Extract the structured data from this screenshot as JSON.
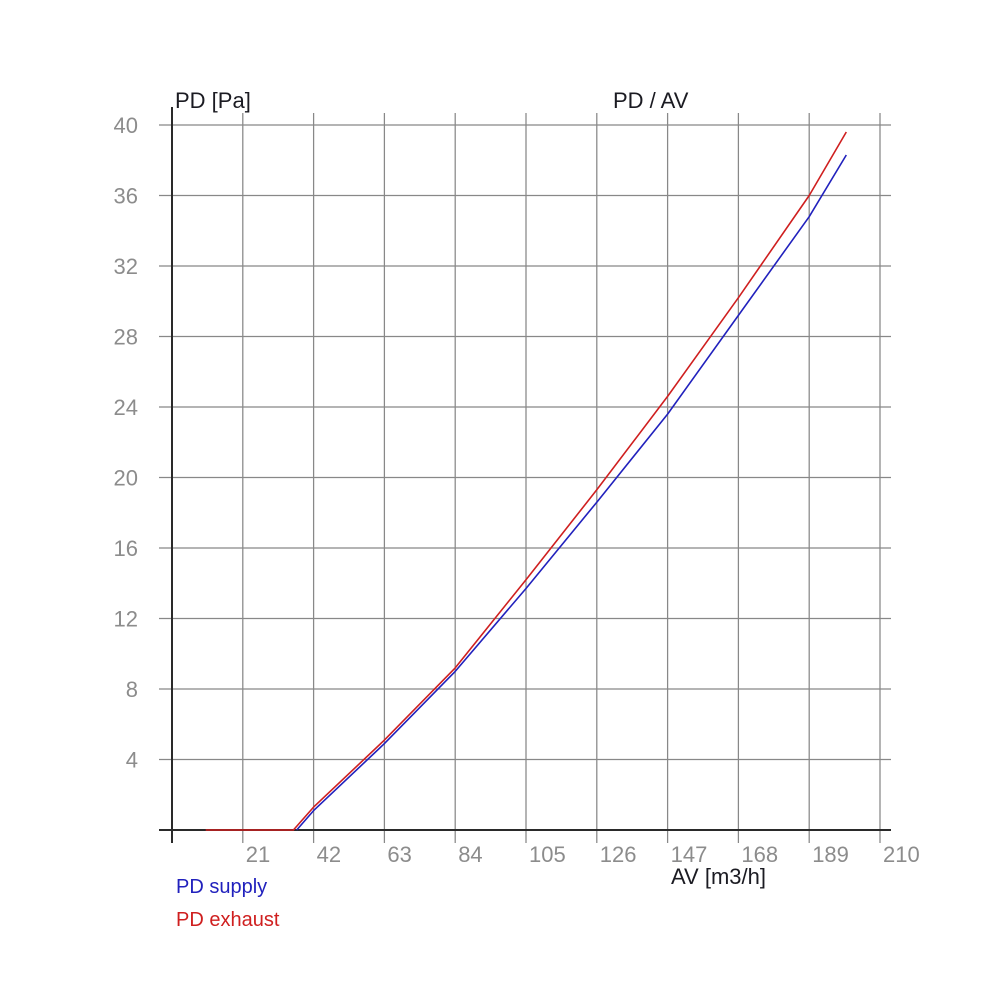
{
  "chart_data": {
    "type": "line",
    "title": "PD / AV",
    "y_axis_title": "PD [Pa]",
    "x_axis_title": "AV [m3/h]",
    "xlim": [
      0,
      210
    ],
    "ylim": [
      0,
      40
    ],
    "x_ticks": [
      21,
      42,
      63,
      84,
      105,
      126,
      147,
      168,
      189,
      210
    ],
    "y_ticks": [
      4,
      8,
      12,
      16,
      20,
      24,
      28,
      32,
      36,
      40
    ],
    "grid": true,
    "legend_position": "bottom-left",
    "colors": {
      "grid": "#888888",
      "axis": "#2a2a2a",
      "tick_label": "#8c8c8c",
      "title": "#1b1b22",
      "background": "#ffffff"
    },
    "series": [
      {
        "name": "PD supply",
        "color": "#2121bd",
        "points": [
          [
            37,
            0
          ],
          [
            42,
            1.1
          ],
          [
            63,
            4.9
          ],
          [
            84,
            9.0
          ],
          [
            105,
            13.7
          ],
          [
            126,
            18.6
          ],
          [
            147,
            23.6
          ],
          [
            168,
            29.2
          ],
          [
            189,
            34.8
          ],
          [
            200,
            38.3
          ]
        ]
      },
      {
        "name": "PD exhaust",
        "color": "#cf1f1f",
        "points": [
          [
            10,
            0
          ],
          [
            36,
            0
          ],
          [
            42,
            1.3
          ],
          [
            63,
            5.1
          ],
          [
            84,
            9.2
          ],
          [
            105,
            14.2
          ],
          [
            126,
            19.3
          ],
          [
            147,
            24.6
          ],
          [
            168,
            30.2
          ],
          [
            189,
            36.0
          ],
          [
            200,
            39.6
          ]
        ]
      }
    ],
    "legend": [
      {
        "label": "PD supply",
        "color": "#2121bd"
      },
      {
        "label": "PD exhaust",
        "color": "#cf1f1f"
      }
    ]
  }
}
